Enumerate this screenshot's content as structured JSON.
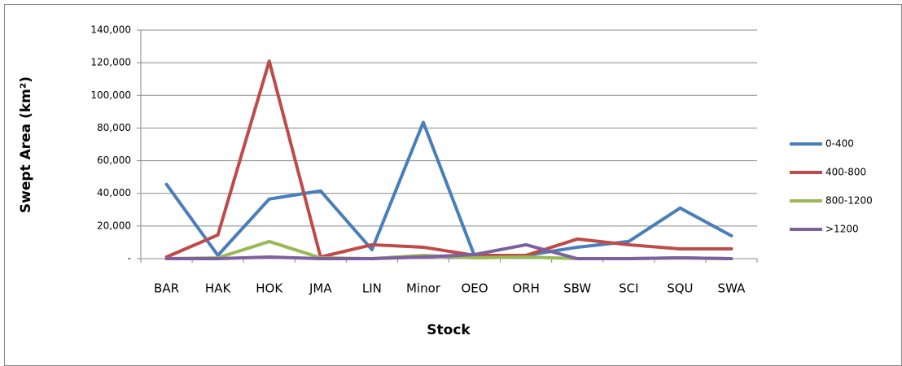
{
  "chart_data": {
    "type": "line",
    "y_label": "Swept Area (km²)",
    "x_label": "Stock",
    "categories": [
      "BAR",
      "HAK",
      "HOK",
      "JMA",
      "LIN",
      "Minor",
      "OEO",
      "ORH",
      "SBW",
      "SCI",
      "SQU",
      "SWA"
    ],
    "series": [
      {
        "name": "0-400",
        "color": "#4a7ebb",
        "values": [
          45500,
          2000,
          36500,
          41500,
          5500,
          83500,
          1500,
          2000,
          7000,
          10500,
          31000,
          14000
        ]
      },
      {
        "name": "400-800",
        "color": "#be4b48",
        "values": [
          1000,
          14500,
          121000,
          1000,
          8500,
          7000,
          2000,
          2000,
          12000,
          8500,
          6000,
          6000
        ]
      },
      {
        "name": "800-1200",
        "color": "#98b954",
        "values": [
          0,
          500,
          10500,
          500,
          0,
          2000,
          500,
          1000,
          0,
          0,
          500,
          0
        ]
      },
      {
        "name": ">1200",
        "color": "#7d60a0",
        "values": [
          0,
          0,
          1000,
          0,
          0,
          1000,
          2500,
          8500,
          0,
          0,
          500,
          0
        ]
      }
    ],
    "ylim": [
      0,
      140000
    ],
    "yticks": [
      {
        "value": 0,
        "label": "-"
      },
      {
        "value": 20000,
        "label": "20,000"
      },
      {
        "value": 40000,
        "label": "40,000"
      },
      {
        "value": 60000,
        "label": "60,000"
      },
      {
        "value": 80000,
        "label": "80,000"
      },
      {
        "value": 100000,
        "label": "100,000"
      },
      {
        "value": 120000,
        "label": "120,000"
      },
      {
        "value": 140000,
        "label": "140,000"
      }
    ],
    "grid": true,
    "legend_position": "right"
  }
}
